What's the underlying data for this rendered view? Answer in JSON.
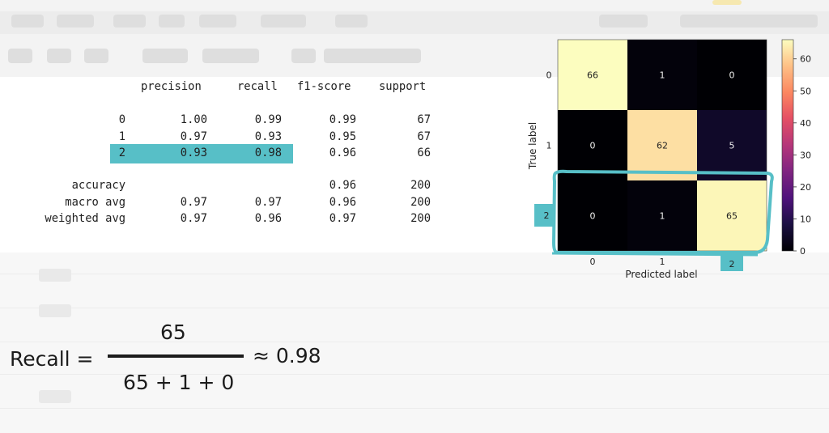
{
  "report": {
    "headers": [
      "precision",
      "recall",
      "f1-score",
      "support"
    ],
    "rows": [
      {
        "label": "0",
        "precision": "1.00",
        "recall": "0.99",
        "f1": "0.99",
        "support": "67"
      },
      {
        "label": "1",
        "precision": "0.97",
        "recall": "0.93",
        "f1": "0.95",
        "support": "67"
      },
      {
        "label": "2",
        "precision": "0.93",
        "recall": "0.98",
        "f1": "0.96",
        "support": "66"
      }
    ],
    "summary": [
      {
        "label": "accuracy",
        "precision": "",
        "recall": "",
        "f1": "0.96",
        "support": "200"
      },
      {
        "label": "macro avg",
        "precision": "0.97",
        "recall": "0.97",
        "f1": "0.96",
        "support": "200"
      },
      {
        "label": "weighted avg",
        "precision": "0.97",
        "recall": "0.96",
        "f1": "0.97",
        "support": "200"
      }
    ],
    "highlight_color": "#57bfc7"
  },
  "confusion_matrix": {
    "xlabel": "Predicted label",
    "ylabel": "True label",
    "x_ticks": [
      "0",
      "1",
      "2"
    ],
    "y_ticks": [
      "0",
      "1",
      "2"
    ],
    "values": [
      [
        66,
        1,
        0
      ],
      [
        0,
        62,
        5
      ],
      [
        0,
        1,
        65
      ]
    ],
    "colorbar_ticks": [
      "0",
      "10",
      "20",
      "30",
      "40",
      "50",
      "60"
    ],
    "colorbar_max": 66,
    "colormap": "magma",
    "highlight_row": 2,
    "highlight_color": "#57bfc7"
  },
  "formula": {
    "lhs": "Recall =",
    "numerator": "65",
    "denominator": "65 + 1 + 0",
    "result": "≈ 0.98"
  }
}
